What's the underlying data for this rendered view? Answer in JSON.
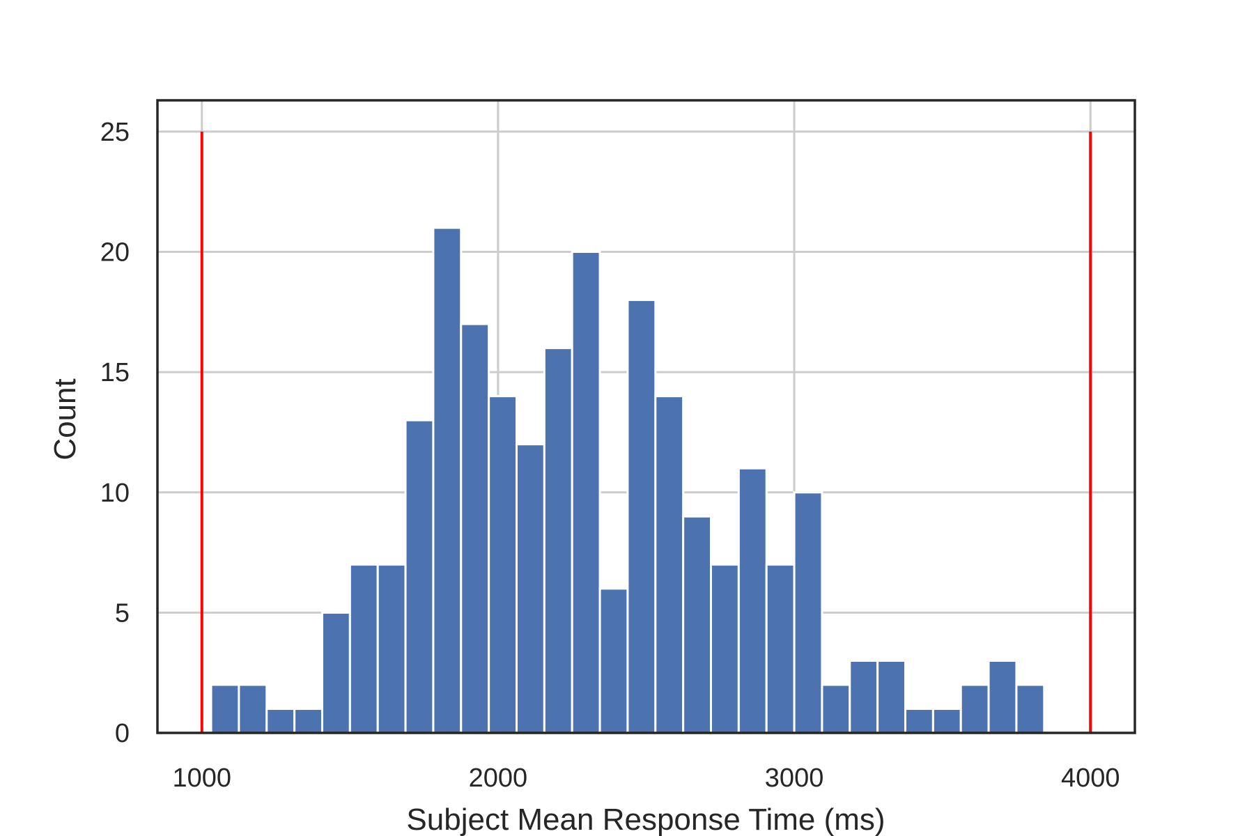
{
  "chart_data": {
    "type": "bar",
    "title": "",
    "xlabel": "Subject Mean Response Time (ms)",
    "ylabel": "Count",
    "xlim": [
      850,
      4150
    ],
    "ylim": [
      0,
      26.3
    ],
    "x_ticks": [
      1000,
      2000,
      3000,
      4000
    ],
    "y_ticks": [
      0,
      5,
      10,
      15,
      20,
      25
    ],
    "grid": true,
    "legend": "none",
    "bins": {
      "width": 93.75,
      "edges_start": 1031.25
    },
    "series": [
      {
        "values": [
          2,
          2,
          1,
          1,
          5,
          7,
          7,
          13,
          21,
          17,
          14,
          12,
          16,
          20,
          6,
          18,
          14,
          9,
          7,
          11,
          7,
          10,
          2,
          3,
          3,
          1,
          1,
          2,
          3,
          2
        ],
        "color": "#4c72b0"
      }
    ],
    "reference_lines": [
      {
        "x": 1000,
        "y_top": 25,
        "color": "#ff0000"
      },
      {
        "x": 4000,
        "y_top": 25,
        "color": "#ff0000"
      }
    ]
  }
}
